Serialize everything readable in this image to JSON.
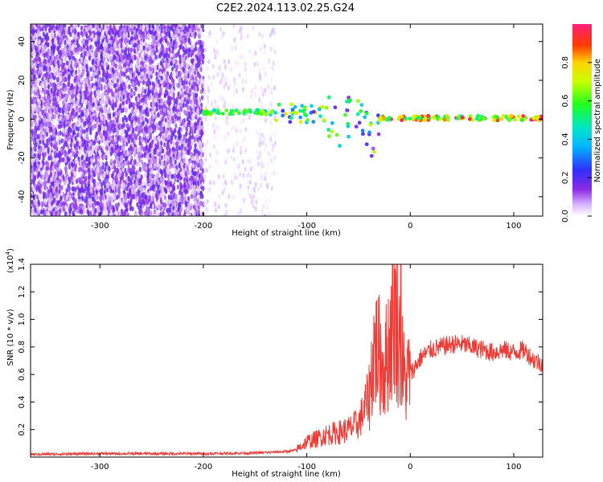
{
  "title": "C2E2.2024.113.02.25.G24",
  "chart_data": [
    {
      "type": "heatmap",
      "xlabel": "Height of straight line (km)",
      "ylabel": "Frequency (Hz)",
      "xlim": [
        -367,
        128
      ],
      "ylim": [
        -50,
        49
      ],
      "xticks": [
        -300,
        -200,
        -100,
        0,
        100
      ],
      "yticks": [
        -40,
        -20,
        0,
        20,
        40
      ],
      "xtick_labels": [
        "-300",
        "-200",
        "-100",
        "0",
        "100"
      ],
      "ytick_labels": [
        "-40",
        "-20",
        "0",
        "20",
        "40"
      ],
      "colorbar": {
        "label": "Normalized spectral amplitude",
        "range": [
          0,
          1
        ],
        "ticks": [
          0.0,
          0.2,
          0.4,
          0.6,
          0.8
        ],
        "tick_labels": [
          "0.0",
          "0.2",
          "0.4",
          "0.6",
          "0.8"
        ]
      },
      "regions": [
        {
          "x": [
            -367,
            -200
          ],
          "freq": [
            -50,
            49
          ],
          "amplitude": [
            0.02,
            0.2
          ],
          "pattern": "noise"
        },
        {
          "x": [
            -200,
            -130
          ],
          "freq": [
            -50,
            49
          ],
          "amplitude": [
            0.0,
            0.05
          ],
          "pattern": "faint noise"
        },
        {
          "x": [
            -200,
            -130
          ],
          "freq": [
            2,
            5
          ],
          "amplitude": [
            0.4,
            0.7
          ],
          "pattern": "band"
        },
        {
          "x": [
            -130,
            -80
          ],
          "freq": [
            -3,
            10
          ],
          "amplitude": [
            0.2,
            0.8
          ],
          "pattern": "band"
        },
        {
          "x": [
            -80,
            -30
          ],
          "freq": [
            -17,
            12
          ],
          "amplitude": [
            0.1,
            0.7
          ],
          "pattern": "dispersed band"
        },
        {
          "x": [
            -30,
            128
          ],
          "freq": [
            -1,
            2
          ],
          "amplitude": [
            0.5,
            1.0
          ],
          "pattern": "band"
        }
      ],
      "grid": false
    },
    {
      "type": "line",
      "xlabel": "Height of straight line (km)",
      "ylabel": "SNR (10 * v/v)",
      "multiplier_label": "(x10",
      "multiplier_exp": "4",
      "multiplier_close": ")",
      "xlim": [
        -367,
        128
      ],
      "ylim": [
        0,
        1.4
      ],
      "xticks": [
        -300,
        -200,
        -100,
        0,
        100
      ],
      "yticks": [
        0.2,
        0.4,
        0.6,
        0.8,
        1.0,
        1.2,
        1.4
      ],
      "xtick_labels": [
        "-300",
        "-200",
        "-100",
        "0",
        "100"
      ],
      "ytick_labels": [
        "0.2",
        "0.4",
        "0.6",
        "0.8",
        "1.0",
        "1.2",
        "1.4"
      ],
      "series_color": "#ef3b36",
      "x": [
        -367,
        -300,
        -200,
        -150,
        -120,
        -110,
        -100,
        -90,
        -80,
        -70,
        -60,
        -50,
        -45,
        -40,
        -35,
        -30,
        -25,
        -20,
        -15,
        -10,
        -5,
        0,
        10,
        20,
        30,
        40,
        50,
        60,
        70,
        80,
        90,
        100,
        110,
        120,
        128
      ],
      "y": [
        0.02,
        0.025,
        0.025,
        0.03,
        0.04,
        0.05,
        0.1,
        0.12,
        0.15,
        0.16,
        0.18,
        0.22,
        0.3,
        0.4,
        0.75,
        0.7,
        0.6,
        0.8,
        1.0,
        0.75,
        0.5,
        0.6,
        0.72,
        0.78,
        0.8,
        0.82,
        0.82,
        0.8,
        0.78,
        0.76,
        0.78,
        0.76,
        0.78,
        0.7,
        0.68
      ],
      "grid": false
    }
  ]
}
